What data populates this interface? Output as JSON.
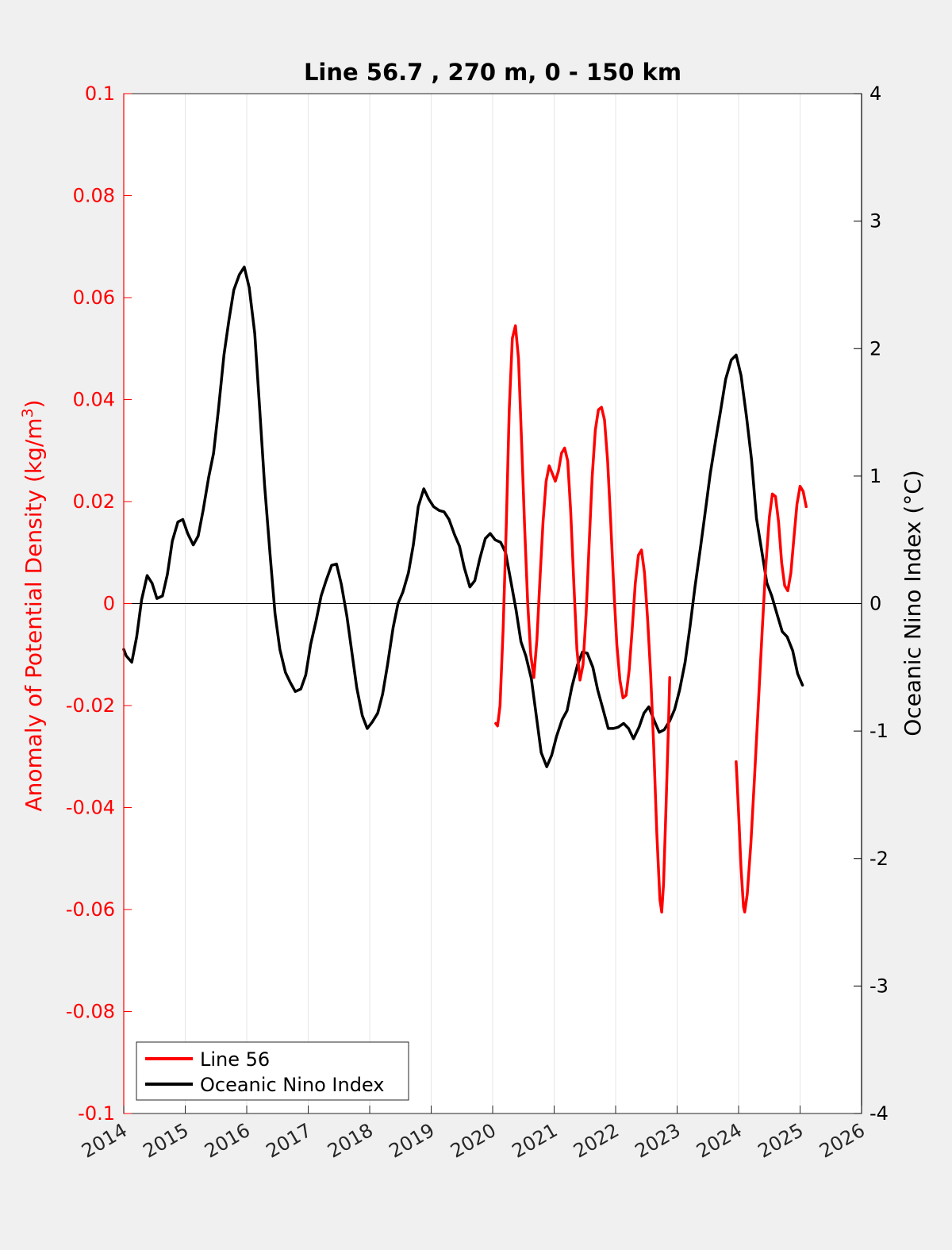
{
  "chart_data": {
    "type": "line",
    "title": "Line 56.7 , 270 m, 0 - 150 km",
    "ylabel_left": {
      "text": "Anomaly of Potential Density (kg/m",
      "sup": "3",
      "close": ")"
    },
    "ylabel_right": "Oceanic Nino Index (°C)",
    "xlim": [
      2014,
      2026
    ],
    "ylim_left": [
      -0.1,
      0.1
    ],
    "ylim_right": [
      -4,
      4
    ],
    "x_ticks": [
      "2014",
      "2015",
      "2016",
      "2017",
      "2018",
      "2019",
      "2020",
      "2021",
      "2022",
      "2023",
      "2024",
      "2025",
      "2026"
    ],
    "y_left_ticks": [
      "0.1",
      "0.08",
      "0.06",
      "0.04",
      "0.02",
      "0",
      "-0.02",
      "-0.04",
      "-0.06",
      "-0.08",
      "-0.1"
    ],
    "y_right_ticks": [
      "4",
      "3",
      "2",
      "1",
      "0",
      "-1",
      "-2",
      "-3",
      "-4"
    ],
    "grid": "vertical",
    "legend_position": "bottom-left",
    "colors": {
      "line56": "#ff0000",
      "oni": "#000000",
      "axis_left": "#ff0000",
      "axis_right": "#000000"
    },
    "series": [
      {
        "name": "Line 56",
        "axis": "left",
        "segments": [
          [
            [
              2020.05,
              -0.0235
            ],
            [
              2020.08,
              -0.024
            ],
            [
              2020.12,
              -0.02
            ],
            [
              2020.17,
              -0.005
            ],
            [
              2020.22,
              0.015
            ],
            [
              2020.27,
              0.038
            ],
            [
              2020.32,
              0.052
            ],
            [
              2020.37,
              0.0545
            ],
            [
              2020.42,
              0.048
            ],
            [
              2020.47,
              0.032
            ],
            [
              2020.52,
              0.015
            ],
            [
              2020.57,
              0.0
            ],
            [
              2020.62,
              -0.01
            ],
            [
              2020.67,
              -0.0145
            ],
            [
              2020.72,
              -0.007
            ],
            [
              2020.77,
              0.005
            ],
            [
              2020.82,
              0.016
            ],
            [
              2020.87,
              0.024
            ],
            [
              2020.92,
              0.027
            ],
            [
              2020.97,
              0.0255
            ],
            [
              2021.02,
              0.024
            ],
            [
              2021.07,
              0.026
            ],
            [
              2021.12,
              0.0295
            ],
            [
              2021.17,
              0.0305
            ],
            [
              2021.22,
              0.028
            ],
            [
              2021.27,
              0.018
            ],
            [
              2021.32,
              0.004
            ],
            [
              2021.37,
              -0.009
            ],
            [
              2021.42,
              -0.015
            ],
            [
              2021.47,
              -0.012
            ],
            [
              2021.52,
              -0.002
            ],
            [
              2021.57,
              0.012
            ],
            [
              2021.62,
              0.025
            ],
            [
              2021.67,
              0.034
            ],
            [
              2021.72,
              0.038
            ],
            [
              2021.77,
              0.0385
            ],
            [
              2021.82,
              0.036
            ],
            [
              2021.87,
              0.028
            ],
            [
              2021.92,
              0.016
            ],
            [
              2021.97,
              0.003
            ],
            [
              2022.02,
              -0.008
            ],
            [
              2022.07,
              -0.015
            ],
            [
              2022.12,
              -0.0185
            ],
            [
              2022.17,
              -0.018
            ],
            [
              2022.22,
              -0.013
            ],
            [
              2022.27,
              -0.005
            ],
            [
              2022.32,
              0.004
            ],
            [
              2022.37,
              0.0095
            ],
            [
              2022.42,
              0.0105
            ],
            [
              2022.47,
              0.006
            ],
            [
              2022.52,
              -0.003
            ],
            [
              2022.57,
              -0.014
            ],
            [
              2022.62,
              -0.028
            ],
            [
              2022.67,
              -0.045
            ],
            [
              2022.72,
              -0.058
            ],
            [
              2022.75,
              -0.0605
            ],
            [
              2022.78,
              -0.055
            ],
            [
              2022.82,
              -0.04
            ],
            [
              2022.86,
              -0.024
            ],
            [
              2022.88,
              -0.0145
            ]
          ],
          [
            [
              2023.96,
              -0.031
            ],
            [
              2024.0,
              -0.041
            ],
            [
              2024.04,
              -0.052
            ],
            [
              2024.08,
              -0.0595
            ],
            [
              2024.1,
              -0.0605
            ],
            [
              2024.14,
              -0.057
            ],
            [
              2024.2,
              -0.047
            ],
            [
              2024.26,
              -0.034
            ],
            [
              2024.32,
              -0.02
            ],
            [
              2024.38,
              -0.006
            ],
            [
              2024.44,
              0.007
            ],
            [
              2024.5,
              0.017
            ],
            [
              2024.55,
              0.0215
            ],
            [
              2024.6,
              0.021
            ],
            [
              2024.65,
              0.016
            ],
            [
              2024.7,
              0.008
            ],
            [
              2024.75,
              0.0035
            ],
            [
              2024.8,
              0.0025
            ],
            [
              2024.85,
              0.006
            ],
            [
              2024.9,
              0.013
            ],
            [
              2024.95,
              0.0195
            ],
            [
              2025.0,
              0.023
            ],
            [
              2025.05,
              0.022
            ],
            [
              2025.1,
              0.019
            ]
          ]
        ]
      },
      {
        "name": "Oceanic Nino Index",
        "axis": "right",
        "points": [
          [
            2014.0,
            -0.36
          ],
          [
            2014.04,
            -0.41
          ],
          [
            2014.13,
            -0.46
          ],
          [
            2014.21,
            -0.26
          ],
          [
            2014.29,
            0.03
          ],
          [
            2014.38,
            0.22
          ],
          [
            2014.46,
            0.16
          ],
          [
            2014.54,
            0.04
          ],
          [
            2014.63,
            0.06
          ],
          [
            2014.71,
            0.23
          ],
          [
            2014.79,
            0.49
          ],
          [
            2014.88,
            0.64
          ],
          [
            2014.96,
            0.66
          ],
          [
            2015.04,
            0.55
          ],
          [
            2015.13,
            0.46
          ],
          [
            2015.21,
            0.53
          ],
          [
            2015.29,
            0.73
          ],
          [
            2015.38,
            0.99
          ],
          [
            2015.46,
            1.18
          ],
          [
            2015.54,
            1.52
          ],
          [
            2015.63,
            1.95
          ],
          [
            2015.71,
            2.22
          ],
          [
            2015.79,
            2.46
          ],
          [
            2015.88,
            2.58
          ],
          [
            2015.96,
            2.64
          ],
          [
            2016.04,
            2.48
          ],
          [
            2016.13,
            2.12
          ],
          [
            2016.21,
            1.53
          ],
          [
            2016.29,
            0.93
          ],
          [
            2016.38,
            0.38
          ],
          [
            2016.46,
            -0.08
          ],
          [
            2016.54,
            -0.36
          ],
          [
            2016.63,
            -0.54
          ],
          [
            2016.71,
            -0.62
          ],
          [
            2016.79,
            -0.69
          ],
          [
            2016.88,
            -0.67
          ],
          [
            2016.96,
            -0.56
          ],
          [
            2017.04,
            -0.32
          ],
          [
            2017.13,
            -0.13
          ],
          [
            2017.21,
            0.06
          ],
          [
            2017.29,
            0.18
          ],
          [
            2017.38,
            0.3
          ],
          [
            2017.46,
            0.31
          ],
          [
            2017.54,
            0.15
          ],
          [
            2017.63,
            -0.1
          ],
          [
            2017.71,
            -0.38
          ],
          [
            2017.79,
            -0.66
          ],
          [
            2017.88,
            -0.88
          ],
          [
            2017.96,
            -0.98
          ],
          [
            2018.04,
            -0.93
          ],
          [
            2018.13,
            -0.86
          ],
          [
            2018.21,
            -0.71
          ],
          [
            2018.29,
            -0.48
          ],
          [
            2018.38,
            -0.19
          ],
          [
            2018.46,
            0.0
          ],
          [
            2018.54,
            0.09
          ],
          [
            2018.63,
            0.24
          ],
          [
            2018.71,
            0.46
          ],
          [
            2018.79,
            0.76
          ],
          [
            2018.88,
            0.9
          ],
          [
            2018.96,
            0.82
          ],
          [
            2019.04,
            0.76
          ],
          [
            2019.13,
            0.73
          ],
          [
            2019.21,
            0.72
          ],
          [
            2019.29,
            0.66
          ],
          [
            2019.38,
            0.54
          ],
          [
            2019.46,
            0.45
          ],
          [
            2019.54,
            0.28
          ],
          [
            2019.63,
            0.13
          ],
          [
            2019.71,
            0.18
          ],
          [
            2019.79,
            0.35
          ],
          [
            2019.88,
            0.51
          ],
          [
            2019.96,
            0.55
          ],
          [
            2020.04,
            0.5
          ],
          [
            2020.13,
            0.48
          ],
          [
            2020.21,
            0.4
          ],
          [
            2020.29,
            0.19
          ],
          [
            2020.38,
            -0.05
          ],
          [
            2020.46,
            -0.3
          ],
          [
            2020.54,
            -0.41
          ],
          [
            2020.63,
            -0.59
          ],
          [
            2020.71,
            -0.88
          ],
          [
            2020.79,
            -1.17
          ],
          [
            2020.88,
            -1.28
          ],
          [
            2020.96,
            -1.19
          ],
          [
            2021.04,
            -1.04
          ],
          [
            2021.13,
            -0.91
          ],
          [
            2021.21,
            -0.84
          ],
          [
            2021.29,
            -0.65
          ],
          [
            2021.38,
            -0.48
          ],
          [
            2021.46,
            -0.38
          ],
          [
            2021.54,
            -0.39
          ],
          [
            2021.63,
            -0.5
          ],
          [
            2021.71,
            -0.68
          ],
          [
            2021.79,
            -0.82
          ],
          [
            2021.88,
            -0.98
          ],
          [
            2021.96,
            -0.98
          ],
          [
            2022.04,
            -0.97
          ],
          [
            2022.13,
            -0.94
          ],
          [
            2022.21,
            -0.98
          ],
          [
            2022.29,
            -1.06
          ],
          [
            2022.38,
            -0.97
          ],
          [
            2022.46,
            -0.86
          ],
          [
            2022.54,
            -0.81
          ],
          [
            2022.63,
            -0.92
          ],
          [
            2022.71,
            -1.01
          ],
          [
            2022.79,
            -0.99
          ],
          [
            2022.88,
            -0.92
          ],
          [
            2022.96,
            -0.83
          ],
          [
            2023.04,
            -0.68
          ],
          [
            2023.13,
            -0.46
          ],
          [
            2023.21,
            -0.18
          ],
          [
            2023.29,
            0.13
          ],
          [
            2023.38,
            0.44
          ],
          [
            2023.46,
            0.73
          ],
          [
            2023.54,
            1.02
          ],
          [
            2023.63,
            1.29
          ],
          [
            2023.71,
            1.52
          ],
          [
            2023.79,
            1.76
          ],
          [
            2023.88,
            1.91
          ],
          [
            2023.96,
            1.95
          ],
          [
            2024.04,
            1.79
          ],
          [
            2024.13,
            1.46
          ],
          [
            2024.21,
            1.13
          ],
          [
            2024.29,
            0.67
          ],
          [
            2024.38,
            0.4
          ],
          [
            2024.46,
            0.16
          ],
          [
            2024.54,
            0.06
          ],
          [
            2024.63,
            -0.09
          ],
          [
            2024.71,
            -0.22
          ],
          [
            2024.79,
            -0.26
          ],
          [
            2024.88,
            -0.37
          ],
          [
            2024.96,
            -0.55
          ],
          [
            2025.04,
            -0.64
          ]
        ]
      }
    ]
  }
}
